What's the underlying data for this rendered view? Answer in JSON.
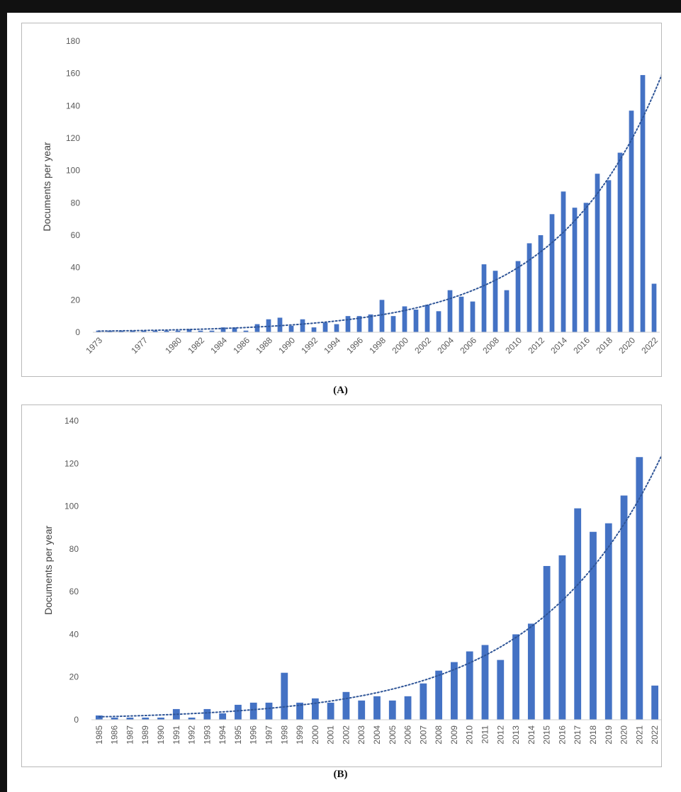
{
  "style": {
    "bar_color": "#4472c4",
    "trend_color": "#2f5597",
    "axis_color": "#d0d0d0",
    "text_color": "#595959"
  },
  "captions": {
    "a": "(A)",
    "b": "(B)"
  },
  "chart_data": [
    {
      "type": "bar",
      "ylabel": "Documents per year",
      "xlabel": "",
      "ylim": [
        0,
        180
      ],
      "yticks": [
        0,
        20,
        40,
        60,
        80,
        100,
        120,
        140,
        160,
        180
      ],
      "x_tick_labels": [
        "1973",
        "1977",
        "1980",
        "1982",
        "1984",
        "1986",
        "1988",
        "1990",
        "1992",
        "1994",
        "1996",
        "1998",
        "2000",
        "2002",
        "2004",
        "2006",
        "2008",
        "2010",
        "2012",
        "2014",
        "2016",
        "2018",
        "2020",
        "2022"
      ],
      "categories": [
        "1973",
        "1974",
        "1975",
        "1976",
        "1977",
        "1978",
        "1979",
        "1980",
        "1981",
        "1982",
        "1983",
        "1984",
        "1985",
        "1986",
        "1987",
        "1988",
        "1989",
        "1990",
        "1991",
        "1992",
        "1993",
        "1994",
        "1995",
        "1996",
        "1997",
        "1998",
        "1999",
        "2000",
        "2001",
        "2002",
        "2003",
        "2004",
        "2005",
        "2006",
        "2007",
        "2008",
        "2009",
        "2010",
        "2011",
        "2012",
        "2013",
        "2014",
        "2015",
        "2016",
        "2017",
        "2018",
        "2019",
        "2020",
        "2021",
        "2022"
      ],
      "values": [
        1,
        1,
        1,
        1,
        1,
        1,
        1,
        1,
        2,
        1,
        1,
        3,
        3,
        1,
        5,
        8,
        9,
        4,
        8,
        3,
        6,
        5,
        10,
        10,
        11,
        20,
        10,
        16,
        14,
        17,
        13,
        26,
        22,
        19,
        42,
        38,
        26,
        44,
        55,
        60,
        73,
        87,
        77,
        80,
        98,
        94,
        111,
        137,
        159,
        30
      ],
      "trendline": "exponential, dotted",
      "grid": false,
      "legend": "none"
    },
    {
      "type": "bar",
      "ylabel": "Documents per year",
      "xlabel": "",
      "ylim": [
        0,
        140
      ],
      "yticks": [
        0,
        20,
        40,
        60,
        80,
        100,
        120,
        140
      ],
      "x_tick_labels": [
        "1985",
        "1986",
        "1987",
        "1989",
        "1990",
        "1991",
        "1992",
        "1993",
        "1994",
        "1995",
        "1996",
        "1997",
        "1998",
        "1999",
        "2000",
        "2001",
        "2002",
        "2003",
        "2004",
        "2005",
        "2006",
        "2007",
        "2008",
        "2009",
        "2010",
        "2011",
        "2012",
        "2013",
        "2014",
        "2015",
        "2016",
        "2017",
        "2018",
        "2019",
        "2020",
        "2021",
        "2022"
      ],
      "categories": [
        "1985",
        "1986",
        "1987",
        "1989",
        "1990",
        "1991",
        "1992",
        "1993",
        "1994",
        "1995",
        "1996",
        "1997",
        "1998",
        "1999",
        "2000",
        "2001",
        "2002",
        "2003",
        "2004",
        "2005",
        "2006",
        "2007",
        "2008",
        "2009",
        "2010",
        "2011",
        "2012",
        "2013",
        "2014",
        "2015",
        "2016",
        "2017",
        "2018",
        "2019",
        "2020",
        "2021",
        "2022"
      ],
      "values": [
        2,
        1,
        1,
        1,
        1,
        5,
        1,
        5,
        3,
        7,
        8,
        8,
        22,
        8,
        10,
        8,
        13,
        9,
        11,
        9,
        11,
        17,
        23,
        27,
        32,
        35,
        28,
        40,
        45,
        72,
        77,
        99,
        88,
        92,
        105,
        123,
        16
      ],
      "trendline": "exponential, dotted",
      "grid": false,
      "legend": "none"
    }
  ]
}
